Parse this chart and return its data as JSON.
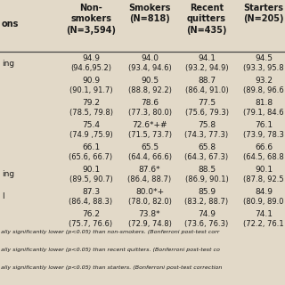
{
  "headers": [
    "Non-\nsmokers\n(N=3,594)",
    "Smokers\n(N=818)",
    "Recent\nquitters\n(N=435)",
    "Starters\n(N=205)"
  ],
  "row_labels": [
    "ing",
    "",
    "",
    "",
    "",
    "ing",
    "l",
    ""
  ],
  "cell_data": [
    [
      "94.9",
      "94.0",
      "94.1",
      "94.5"
    ],
    [
      "(94.6,95.2)",
      "(93.4, 94.6)",
      "(93.2, 94.9)",
      "(93.3, 95.8"
    ],
    [
      "90.9",
      "90.5",
      "88.7",
      "93.2"
    ],
    [
      "(90.1, 91.7)",
      "(88.8, 92.2)",
      "(86.4, 91.0)",
      "(89.8, 96.6"
    ],
    [
      "79.2",
      "78.6",
      "77.5",
      "81.8"
    ],
    [
      "(78.5, 79.8)",
      "(77.3, 80.0)",
      "(75.6, 79.3)",
      "(79.1, 84.6"
    ],
    [
      "75.4",
      "72.6*+#",
      "75.8",
      "76.1"
    ],
    [
      "(74.9 ,75.9)",
      "(71.5, 73.7)",
      "(74.3, 77.3)",
      "(73.9, 78.3"
    ],
    [
      "66.1",
      "65.5",
      "65.8",
      "66.6"
    ],
    [
      "(65.6, 66.7)",
      "(64.4, 66.6)",
      "(64.3, 67.3)",
      "(64.5, 68.8"
    ],
    [
      "90.1",
      "87.6*",
      "88.5",
      "90.1"
    ],
    [
      "(89.5, 90.7)",
      "(86.4, 88.7)",
      "(86.9, 90.1)",
      "(87.8, 92.5"
    ],
    [
      "87.3",
      "80.0*+",
      "85.9",
      "84.9"
    ],
    [
      "(86.4, 88.3)",
      "(78.0, 82.0)",
      "(83.2, 88.7)",
      "(80.9, 89.0"
    ],
    [
      "76.2",
      "73.8*",
      "74.9",
      "74.1"
    ],
    [
      "(75.7, 76.6)",
      "(72.9, 74.8)",
      "(73.6, 76.3)",
      "(72.2, 76.1"
    ]
  ],
  "footnotes": [
    "ally significantly lower (p<0.05) than non-smokers. (Bonferroni post-test corr",
    "ally significantly lower (p<0.05) than recent quitters. (Bonferroni post-test co",
    "ally significantly lower (p<0.05) than starters. (Bonferroni post-test correction"
  ],
  "bg_color": "#e2d9c8",
  "text_color": "#1a1a1a",
  "header_fontsize": 7.0,
  "data_fontsize": 6.5,
  "footnote_fontsize": 4.6,
  "col_label": "ons"
}
